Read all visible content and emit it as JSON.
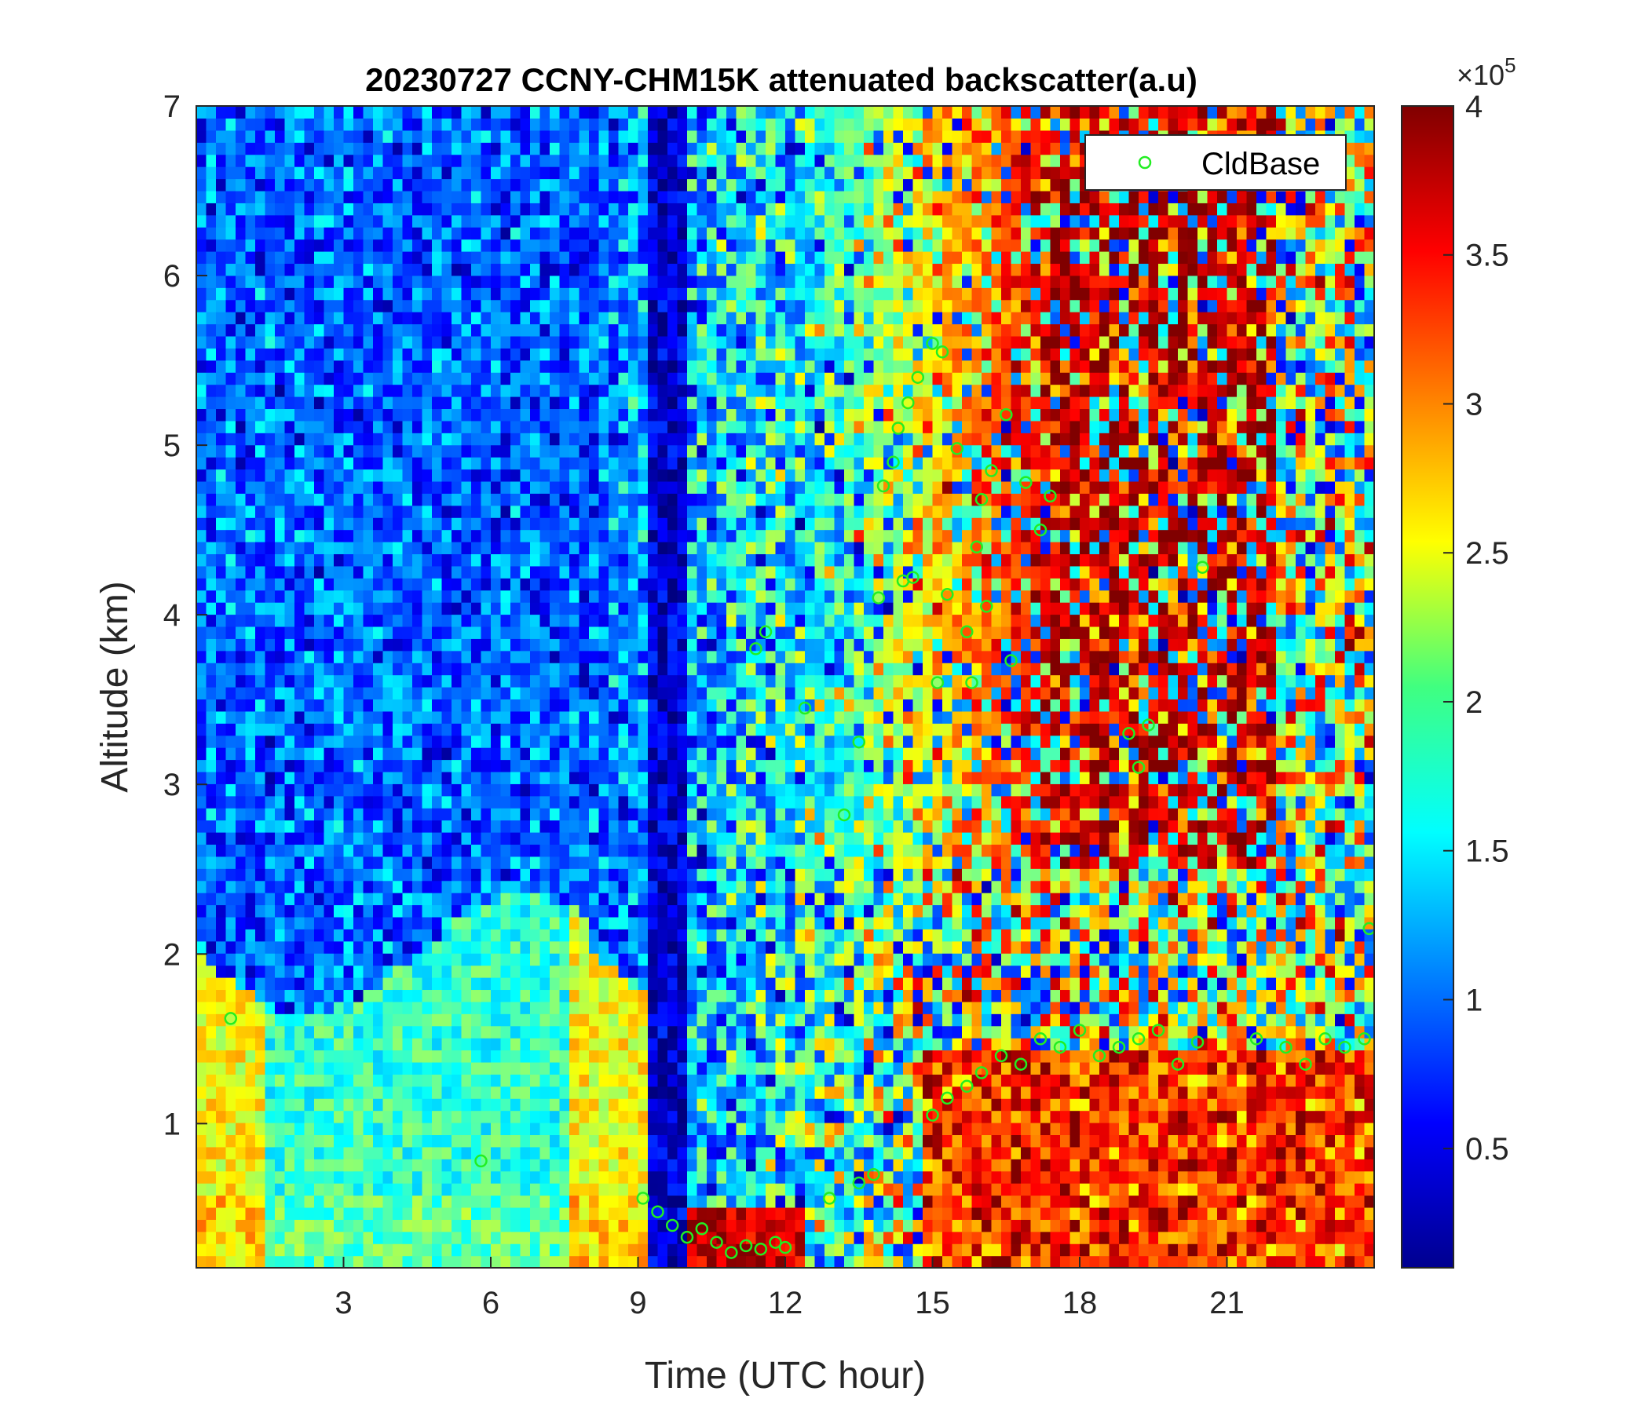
{
  "chart_data": {
    "type": "heatmap",
    "title": "20230727 CCNY-CHM15K attenuated backscatter(a.u)",
    "xlabel": "Time (UTC hour)",
    "ylabel": "Altitude (km)",
    "xlim": [
      0,
      24
    ],
    "ylim": [
      0.15,
      7
    ],
    "xticks": [
      3,
      6,
      9,
      12,
      15,
      18,
      21
    ],
    "yticks": [
      1,
      2,
      3,
      4,
      5,
      6,
      7
    ],
    "colorbar": {
      "colormap": "jet",
      "clim": [
        0.1,
        4
      ],
      "ticks": [
        0.5,
        1,
        1.5,
        2,
        2.5,
        3,
        3.5,
        4
      ],
      "multiplier": "×10",
      "exponent": "5"
    },
    "legend": {
      "entries": [
        "CldBase"
      ],
      "position": "top-right"
    },
    "series": [
      {
        "name": "CldBase",
        "marker": "circle",
        "color": "#22ee22",
        "points": [
          [
            0.7,
            1.62
          ],
          [
            5.8,
            0.78
          ],
          [
            9.1,
            0.56
          ],
          [
            9.4,
            0.48
          ],
          [
            9.7,
            0.4
          ],
          [
            10.0,
            0.33
          ],
          [
            10.3,
            0.38
          ],
          [
            10.6,
            0.3
          ],
          [
            10.9,
            0.24
          ],
          [
            11.2,
            0.28
          ],
          [
            11.5,
            0.26
          ],
          [
            11.8,
            0.3
          ],
          [
            12.0,
            0.27
          ],
          [
            12.9,
            0.56
          ],
          [
            13.5,
            0.65
          ],
          [
            13.8,
            0.7
          ],
          [
            11.4,
            3.8
          ],
          [
            11.6,
            3.9
          ],
          [
            12.4,
            3.45
          ],
          [
            13.2,
            2.82
          ],
          [
            13.5,
            3.25
          ],
          [
            13.9,
            4.1
          ],
          [
            14.0,
            4.76
          ],
          [
            14.2,
            4.9
          ],
          [
            14.3,
            5.1
          ],
          [
            14.5,
            5.25
          ],
          [
            14.7,
            5.4
          ],
          [
            14.4,
            4.2
          ],
          [
            14.6,
            4.22
          ],
          [
            15.0,
            5.6
          ],
          [
            15.2,
            5.55
          ],
          [
            15.5,
            4.98
          ],
          [
            15.3,
            4.12
          ],
          [
            15.1,
            3.6
          ],
          [
            15.7,
            3.9
          ],
          [
            15.9,
            4.4
          ],
          [
            16.1,
            4.05
          ],
          [
            16.2,
            4.85
          ],
          [
            16.0,
            4.68
          ],
          [
            15.8,
            3.6
          ],
          [
            16.5,
            5.18
          ],
          [
            16.9,
            4.78
          ],
          [
            17.2,
            4.5
          ],
          [
            17.4,
            4.7
          ],
          [
            16.6,
            3.73
          ],
          [
            20.5,
            4.28
          ],
          [
            19.0,
            3.3
          ],
          [
            19.2,
            3.1
          ],
          [
            19.4,
            3.35
          ],
          [
            15.0,
            1.05
          ],
          [
            15.3,
            1.15
          ],
          [
            15.7,
            1.22
          ],
          [
            16.0,
            1.3
          ],
          [
            16.4,
            1.4
          ],
          [
            16.8,
            1.35
          ],
          [
            17.2,
            1.5
          ],
          [
            17.6,
            1.45
          ],
          [
            18.0,
            1.55
          ],
          [
            18.4,
            1.4
          ],
          [
            18.8,
            1.45
          ],
          [
            19.2,
            1.5
          ],
          [
            19.6,
            1.55
          ],
          [
            20.0,
            1.35
          ],
          [
            20.4,
            1.48
          ],
          [
            21.6,
            1.5
          ],
          [
            22.2,
            1.45
          ],
          [
            22.6,
            1.35
          ],
          [
            23.0,
            1.5
          ],
          [
            23.4,
            1.45
          ],
          [
            23.8,
            1.5
          ],
          [
            23.9,
            2.15
          ]
        ]
      }
    ]
  }
}
